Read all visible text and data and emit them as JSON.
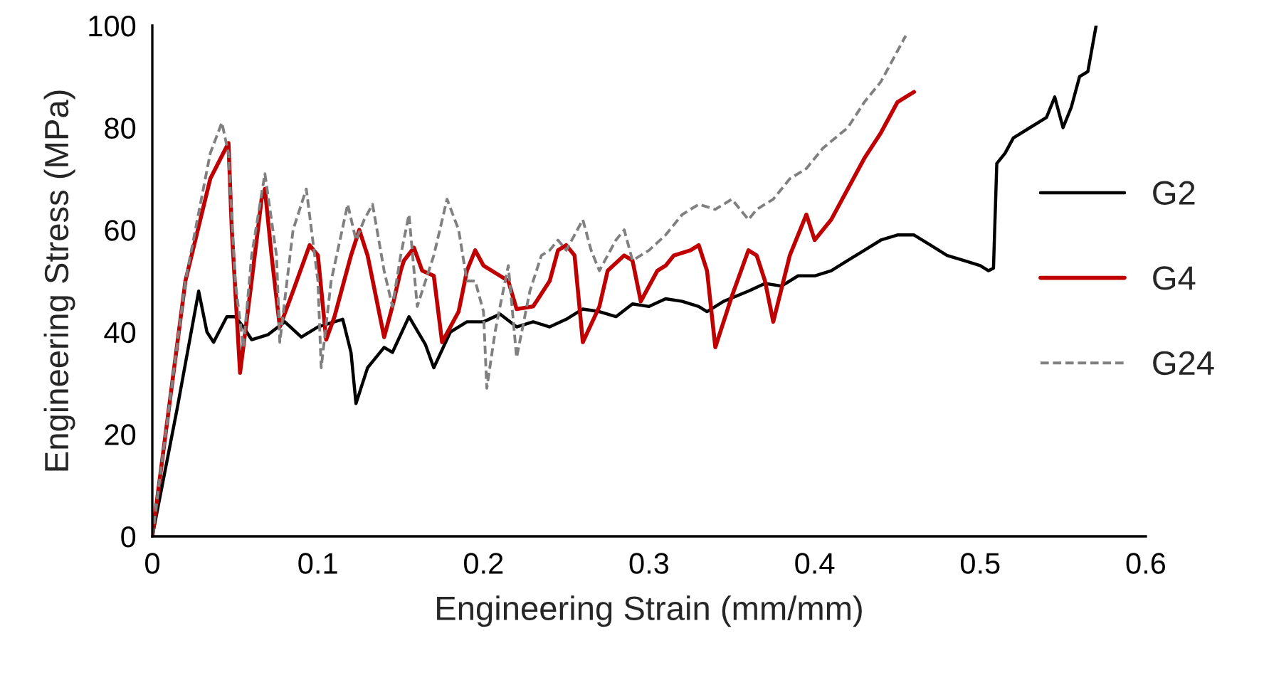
{
  "chart_data": {
    "type": "line",
    "xlabel": "Engineering Strain (mm/mm)",
    "ylabel": "Engineering Stress (MPa)",
    "xlim": [
      0,
      0.6
    ],
    "xticks": [
      0,
      0.1,
      0.2,
      0.3,
      0.4,
      0.5,
      0.6
    ],
    "ylim": [
      0,
      100
    ],
    "yticks": [
      0,
      20,
      40,
      60,
      80,
      100
    ],
    "grid": false,
    "legend": "right",
    "marker": "none",
    "series": [
      {
        "name": "G2",
        "color": "#000000",
        "line_style": "solid",
        "x": [
          0,
          0.015,
          0.028,
          0.033,
          0.037,
          0.045,
          0.05,
          0.055,
          0.06,
          0.07,
          0.08,
          0.085,
          0.09,
          0.1,
          0.11,
          0.115,
          0.12,
          0.123,
          0.13,
          0.14,
          0.145,
          0.155,
          0.165,
          0.17,
          0.18,
          0.19,
          0.2,
          0.21,
          0.22,
          0.23,
          0.24,
          0.25,
          0.26,
          0.27,
          0.28,
          0.29,
          0.3,
          0.31,
          0.32,
          0.33,
          0.335,
          0.345,
          0.36,
          0.37,
          0.38,
          0.39,
          0.4,
          0.41,
          0.42,
          0.43,
          0.44,
          0.45,
          0.46,
          0.47,
          0.48,
          0.49,
          0.5,
          0.505,
          0.508,
          0.51,
          0.515,
          0.52,
          0.53,
          0.54,
          0.545,
          0.55,
          0.555,
          0.56,
          0.565,
          0.57
        ],
        "values": [
          0,
          25,
          48,
          40,
          38,
          43,
          43,
          41,
          38.5,
          39.5,
          42,
          40.5,
          39,
          41,
          42,
          42.5,
          36,
          26,
          33,
          37,
          36,
          43,
          37.5,
          33,
          40,
          42,
          42,
          43.5,
          41,
          42,
          41,
          42.5,
          44.5,
          44,
          43,
          45.5,
          45,
          46.5,
          46,
          45,
          44,
          46,
          48,
          49.5,
          49,
          51,
          51,
          52,
          54,
          56,
          58,
          59,
          59,
          57,
          55,
          54,
          53,
          52,
          52.5,
          73,
          75,
          78,
          80,
          82,
          86,
          80,
          84,
          90,
          91,
          100
        ]
      },
      {
        "name": "G4",
        "color": "#c00000",
        "line_style": "solid",
        "x": [
          0,
          0.02,
          0.035,
          0.046,
          0.048,
          0.053,
          0.06,
          0.066,
          0.068,
          0.072,
          0.077,
          0.085,
          0.095,
          0.1,
          0.105,
          0.11,
          0.12,
          0.125,
          0.13,
          0.14,
          0.145,
          0.15,
          0.152,
          0.158,
          0.163,
          0.17,
          0.175,
          0.185,
          0.19,
          0.195,
          0.2,
          0.21,
          0.215,
          0.22,
          0.23,
          0.24,
          0.245,
          0.25,
          0.255,
          0.26,
          0.27,
          0.275,
          0.285,
          0.29,
          0.295,
          0.305,
          0.31,
          0.315,
          0.325,
          0.33,
          0.335,
          0.34,
          0.35,
          0.36,
          0.365,
          0.37,
          0.375,
          0.385,
          0.395,
          0.4,
          0.41,
          0.42,
          0.43,
          0.44,
          0.45,
          0.455,
          0.46
        ],
        "values": [
          0,
          50,
          70,
          77,
          60,
          32,
          50,
          66,
          68,
          55,
          41,
          48,
          57,
          55,
          38.5,
          43,
          55,
          60,
          55,
          39,
          45,
          52,
          54,
          56.5,
          52,
          51,
          38,
          44,
          52,
          56,
          53,
          51,
          50,
          44.5,
          45,
          50,
          56,
          57,
          55,
          38,
          45,
          52,
          55,
          54,
          46,
          52,
          53,
          55,
          56,
          57,
          52,
          37,
          47,
          56,
          55,
          50,
          42,
          55,
          63,
          58,
          62,
          68,
          74,
          79,
          85,
          86,
          87
        ]
      },
      {
        "name": "G24",
        "color": "#808080",
        "line_style": "dashed",
        "x": [
          0,
          0.02,
          0.035,
          0.042,
          0.046,
          0.05,
          0.055,
          0.06,
          0.068,
          0.075,
          0.077,
          0.085,
          0.093,
          0.1,
          0.102,
          0.108,
          0.118,
          0.123,
          0.128,
          0.133,
          0.14,
          0.145,
          0.15,
          0.155,
          0.16,
          0.17,
          0.178,
          0.185,
          0.19,
          0.195,
          0.2,
          0.202,
          0.207,
          0.21,
          0.215,
          0.22,
          0.228,
          0.235,
          0.24,
          0.245,
          0.25,
          0.26,
          0.265,
          0.27,
          0.28,
          0.285,
          0.29,
          0.3,
          0.31,
          0.32,
          0.33,
          0.34,
          0.35,
          0.36,
          0.365,
          0.375,
          0.385,
          0.395,
          0.405,
          0.42,
          0.43,
          0.44,
          0.45,
          0.455
        ],
        "values": [
          0,
          50,
          75,
          81,
          75,
          50,
          37,
          55,
          71,
          55,
          38,
          60,
          68,
          50,
          33,
          50,
          65,
          58,
          62,
          65,
          52,
          45,
          55,
          63,
          45,
          55,
          66,
          60,
          50,
          50,
          44,
          29,
          40,
          45,
          53,
          35,
          48,
          55,
          56,
          58,
          56,
          62,
          56,
          52,
          58,
          60,
          54,
          56,
          59,
          63,
          65,
          64,
          66,
          62,
          64,
          66,
          70,
          72,
          76,
          80,
          85,
          89,
          95,
          98
        ]
      }
    ]
  }
}
